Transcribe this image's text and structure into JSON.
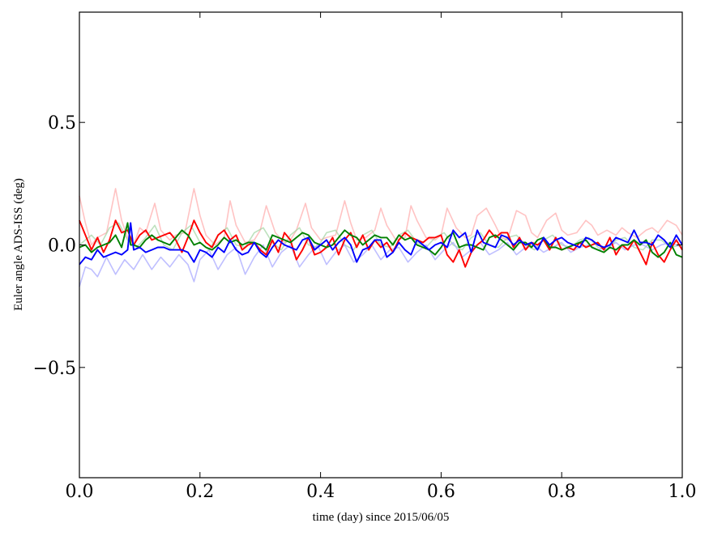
{
  "chart_data": {
    "type": "line",
    "title": "",
    "xlabel": "time (day) since 2015/06/05",
    "ylabel": "Euler angle ADS-ISS (deg)",
    "xlim": [
      0.0,
      1.0
    ],
    "ylim": [
      -0.95,
      0.95
    ],
    "xticks": [
      0.0,
      0.2,
      0.4,
      0.6,
      0.8,
      1.0
    ],
    "xtick_labels": [
      "0.0",
      "0.2",
      "0.4",
      "0.6",
      "0.8",
      "1.0"
    ],
    "yticks": [
      -0.5,
      0.0,
      0.5
    ],
    "ytick_labels": [
      "−0.5",
      "0.0",
      "0.5"
    ],
    "grid": false,
    "legend": "none",
    "series": [
      {
        "color": "#ff9b9b",
        "opacity": 0.6,
        "x": [
          0.0,
          0.01,
          0.02,
          0.03,
          0.045,
          0.06,
          0.07,
          0.08,
          0.09,
          0.1,
          0.11,
          0.125,
          0.135,
          0.15,
          0.16,
          0.175,
          0.19,
          0.2,
          0.21,
          0.225,
          0.24,
          0.25,
          0.26,
          0.275,
          0.29,
          0.3,
          0.31,
          0.325,
          0.34,
          0.35,
          0.36,
          0.375,
          0.385,
          0.4,
          0.41,
          0.425,
          0.44,
          0.45,
          0.46,
          0.475,
          0.49,
          0.5,
          0.51,
          0.525,
          0.54,
          0.55,
          0.56,
          0.575,
          0.59,
          0.6,
          0.61,
          0.625,
          0.64,
          0.65,
          0.66,
          0.675,
          0.69,
          0.7,
          0.71,
          0.725,
          0.74,
          0.75,
          0.76,
          0.775,
          0.79,
          0.8,
          0.81,
          0.825,
          0.84,
          0.85,
          0.86,
          0.875,
          0.89,
          0.9,
          0.91,
          0.925,
          0.94,
          0.95,
          0.96,
          0.975,
          0.99,
          1.0
        ],
        "y": [
          0.2,
          0.09,
          0.0,
          0.03,
          0.05,
          0.23,
          0.1,
          0.03,
          0.0,
          0.07,
          0.05,
          0.17,
          0.06,
          0.02,
          0.04,
          0.05,
          0.23,
          0.12,
          0.04,
          0.0,
          0.03,
          0.18,
          0.08,
          0.01,
          0.02,
          0.06,
          0.16,
          0.05,
          0.01,
          0.02,
          0.06,
          0.17,
          0.07,
          0.02,
          0.03,
          0.04,
          0.18,
          0.09,
          0.02,
          0.03,
          0.06,
          0.15,
          0.08,
          0.02,
          0.03,
          0.16,
          0.1,
          0.03,
          0.02,
          0.04,
          0.15,
          0.07,
          0.03,
          0.04,
          0.12,
          0.15,
          0.08,
          0.03,
          0.02,
          0.14,
          0.12,
          0.05,
          0.03,
          0.1,
          0.13,
          0.06,
          0.04,
          0.05,
          0.1,
          0.08,
          0.04,
          0.06,
          0.04,
          0.07,
          0.05,
          0.03,
          0.06,
          0.07,
          0.05,
          0.1,
          0.08,
          0.04
        ]
      },
      {
        "color": "#9ad19a",
        "opacity": 0.65,
        "x": [
          0.0,
          0.02,
          0.035,
          0.05,
          0.065,
          0.08,
          0.095,
          0.11,
          0.125,
          0.14,
          0.155,
          0.17,
          0.185,
          0.2,
          0.215,
          0.23,
          0.245,
          0.26,
          0.275,
          0.29,
          0.305,
          0.32,
          0.335,
          0.35,
          0.365,
          0.38,
          0.395,
          0.41,
          0.425,
          0.44,
          0.455,
          0.47,
          0.485,
          0.5,
          0.515,
          0.53,
          0.545,
          0.56,
          0.575,
          0.59,
          0.605,
          0.62,
          0.635,
          0.65,
          0.665,
          0.68,
          0.695,
          0.71,
          0.725,
          0.74,
          0.755,
          0.77,
          0.785,
          0.8,
          0.815,
          0.83,
          0.845,
          0.86,
          0.875,
          0.89,
          0.905,
          0.92,
          0.935,
          0.95,
          0.965,
          0.98,
          1.0
        ],
        "y": [
          0.0,
          0.04,
          0.0,
          0.07,
          0.09,
          0.02,
          -0.01,
          0.03,
          0.08,
          0.0,
          -0.02,
          0.05,
          0.08,
          0.01,
          -0.02,
          0.04,
          0.07,
          0.0,
          -0.01,
          0.05,
          0.07,
          0.01,
          -0.02,
          0.04,
          0.07,
          0.0,
          -0.01,
          0.05,
          0.06,
          0.0,
          -0.02,
          0.04,
          0.06,
          0.0,
          -0.01,
          0.04,
          0.06,
          0.01,
          -0.01,
          0.03,
          0.05,
          0.0,
          -0.02,
          0.03,
          0.05,
          0.0,
          -0.01,
          0.03,
          0.04,
          0.0,
          -0.02,
          0.02,
          0.04,
          0.0,
          -0.01,
          0.02,
          0.03,
          -0.01,
          -0.02,
          0.02,
          0.03,
          -0.01,
          -0.02,
          0.02,
          0.02,
          -0.01,
          0.0
        ]
      },
      {
        "color": "#a9a9ff",
        "opacity": 0.75,
        "x": [
          0.0,
          0.01,
          0.02,
          0.03,
          0.045,
          0.06,
          0.075,
          0.09,
          0.105,
          0.12,
          0.135,
          0.15,
          0.165,
          0.18,
          0.19,
          0.2,
          0.215,
          0.23,
          0.245,
          0.26,
          0.275,
          0.29,
          0.305,
          0.32,
          0.335,
          0.35,
          0.365,
          0.38,
          0.395,
          0.41,
          0.425,
          0.44,
          0.455,
          0.47,
          0.485,
          0.5,
          0.515,
          0.53,
          0.545,
          0.56,
          0.575,
          0.59,
          0.605,
          0.62,
          0.635,
          0.65,
          0.665,
          0.68,
          0.695,
          0.71,
          0.725,
          0.74,
          0.755,
          0.77,
          0.785,
          0.8,
          0.815,
          0.83,
          0.845,
          0.86,
          0.875,
          0.89,
          0.905,
          0.92,
          0.935,
          0.95,
          0.965,
          0.98,
          1.0
        ],
        "y": [
          -0.17,
          -0.09,
          -0.1,
          -0.13,
          -0.05,
          -0.12,
          -0.06,
          -0.1,
          -0.04,
          -0.1,
          -0.05,
          -0.09,
          -0.04,
          -0.08,
          -0.15,
          -0.06,
          -0.02,
          -0.1,
          -0.04,
          -0.01,
          -0.12,
          -0.05,
          0.0,
          -0.09,
          -0.03,
          0.0,
          -0.09,
          -0.04,
          0.0,
          -0.08,
          -0.03,
          0.0,
          -0.07,
          -0.04,
          0.0,
          -0.06,
          -0.02,
          -0.01,
          -0.07,
          -0.03,
          0.0,
          -0.06,
          -0.02,
          0.01,
          -0.05,
          -0.02,
          0.01,
          -0.04,
          -0.02,
          0.01,
          -0.04,
          -0.01,
          0.0,
          -0.03,
          -0.01,
          0.01,
          -0.03,
          -0.01,
          0.0,
          -0.02,
          -0.01,
          0.01,
          -0.02,
          0.0,
          0.0,
          -0.02,
          0.0,
          0.01,
          -0.01
        ]
      },
      {
        "color": "#ff0000",
        "opacity": 1,
        "x": [
          0.0,
          0.01,
          0.02,
          0.03,
          0.04,
          0.05,
          0.06,
          0.07,
          0.08,
          0.09,
          0.1,
          0.11,
          0.12,
          0.13,
          0.14,
          0.15,
          0.16,
          0.17,
          0.18,
          0.19,
          0.2,
          0.21,
          0.22,
          0.23,
          0.24,
          0.25,
          0.26,
          0.27,
          0.28,
          0.29,
          0.3,
          0.31,
          0.32,
          0.33,
          0.34,
          0.35,
          0.36,
          0.37,
          0.38,
          0.39,
          0.4,
          0.41,
          0.42,
          0.43,
          0.44,
          0.45,
          0.46,
          0.47,
          0.48,
          0.49,
          0.5,
          0.51,
          0.52,
          0.53,
          0.54,
          0.55,
          0.56,
          0.57,
          0.58,
          0.59,
          0.6,
          0.61,
          0.62,
          0.63,
          0.64,
          0.65,
          0.66,
          0.67,
          0.68,
          0.69,
          0.7,
          0.71,
          0.72,
          0.73,
          0.74,
          0.75,
          0.76,
          0.77,
          0.78,
          0.79,
          0.8,
          0.81,
          0.82,
          0.83,
          0.84,
          0.85,
          0.86,
          0.87,
          0.88,
          0.89,
          0.9,
          0.91,
          0.92,
          0.93,
          0.94,
          0.95,
          0.96,
          0.97,
          0.98,
          0.99,
          1.0
        ],
        "y": [
          0.1,
          0.04,
          -0.02,
          0.03,
          -0.03,
          0.02,
          0.1,
          0.05,
          0.06,
          0.0,
          0.04,
          0.06,
          0.02,
          0.03,
          0.04,
          0.05,
          0.02,
          -0.03,
          0.03,
          0.1,
          0.05,
          0.01,
          -0.01,
          0.04,
          0.06,
          0.02,
          0.04,
          -0.02,
          0.0,
          0.01,
          -0.02,
          -0.04,
          0.02,
          -0.03,
          0.05,
          0.02,
          -0.06,
          -0.02,
          0.03,
          -0.04,
          -0.03,
          -0.01,
          0.03,
          -0.04,
          0.02,
          0.05,
          -0.01,
          0.04,
          -0.02,
          0.02,
          -0.01,
          0.01,
          -0.03,
          0.02,
          0.05,
          0.03,
          0.02,
          0.01,
          0.03,
          0.03,
          0.04,
          -0.04,
          -0.07,
          -0.02,
          -0.09,
          -0.03,
          0.0,
          0.02,
          0.06,
          0.03,
          0.05,
          0.05,
          -0.01,
          0.03,
          -0.02,
          0.01,
          0.0,
          0.02,
          -0.02,
          0.03,
          -0.02,
          -0.01,
          -0.02,
          0.01,
          -0.01,
          0.0,
          0.01,
          -0.02,
          0.03,
          -0.04,
          0.0,
          -0.02,
          0.02,
          -0.03,
          -0.08,
          0.01,
          -0.04,
          -0.07,
          -0.02,
          0.02,
          -0.02
        ]
      },
      {
        "color": "#008000",
        "opacity": 1,
        "x": [
          0.0,
          0.01,
          0.02,
          0.03,
          0.04,
          0.05,
          0.06,
          0.07,
          0.08,
          0.085,
          0.09,
          0.1,
          0.11,
          0.12,
          0.13,
          0.14,
          0.15,
          0.16,
          0.17,
          0.18,
          0.19,
          0.2,
          0.21,
          0.22,
          0.23,
          0.24,
          0.25,
          0.26,
          0.27,
          0.28,
          0.29,
          0.3,
          0.31,
          0.32,
          0.33,
          0.34,
          0.35,
          0.36,
          0.37,
          0.38,
          0.39,
          0.4,
          0.41,
          0.42,
          0.43,
          0.44,
          0.45,
          0.46,
          0.47,
          0.48,
          0.49,
          0.5,
          0.51,
          0.52,
          0.53,
          0.54,
          0.55,
          0.56,
          0.57,
          0.58,
          0.59,
          0.6,
          0.61,
          0.62,
          0.63,
          0.64,
          0.65,
          0.66,
          0.67,
          0.68,
          0.69,
          0.7,
          0.71,
          0.72,
          0.73,
          0.74,
          0.75,
          0.76,
          0.77,
          0.78,
          0.79,
          0.8,
          0.81,
          0.82,
          0.83,
          0.84,
          0.85,
          0.86,
          0.87,
          0.88,
          0.89,
          0.9,
          0.91,
          0.92,
          0.93,
          0.94,
          0.95,
          0.96,
          0.97,
          0.98,
          0.99,
          1.0
        ],
        "y": [
          -0.01,
          0.0,
          -0.03,
          -0.01,
          0.0,
          0.01,
          0.04,
          -0.01,
          0.09,
          0.0,
          0.0,
          -0.01,
          0.02,
          0.04,
          0.02,
          0.01,
          0.0,
          0.03,
          0.06,
          0.04,
          0.0,
          0.01,
          -0.01,
          -0.02,
          0.0,
          0.03,
          0.01,
          0.02,
          0.0,
          0.01,
          0.01,
          0.0,
          -0.02,
          0.04,
          0.03,
          0.02,
          0.01,
          0.03,
          0.05,
          0.04,
          0.01,
          0.0,
          -0.01,
          0.0,
          0.03,
          0.06,
          0.04,
          0.03,
          0.0,
          0.02,
          0.04,
          0.03,
          0.03,
          0.0,
          0.04,
          0.02,
          0.03,
          0.0,
          -0.01,
          -0.02,
          -0.04,
          -0.01,
          0.03,
          0.05,
          -0.01,
          0.0,
          0.0,
          -0.01,
          -0.02,
          0.03,
          0.04,
          0.02,
          0.0,
          -0.02,
          0.01,
          0.01,
          -0.01,
          0.02,
          0.03,
          -0.01,
          -0.01,
          -0.02,
          -0.01,
          0.0,
          0.01,
          0.02,
          -0.01,
          -0.02,
          -0.03,
          -0.01,
          -0.02,
          0.0,
          0.0,
          0.02,
          0.0,
          0.02,
          -0.03,
          -0.05,
          -0.03,
          0.01,
          -0.04,
          -0.05
        ]
      },
      {
        "color": "#0000ff",
        "opacity": 1,
        "x": [
          0.0,
          0.01,
          0.02,
          0.03,
          0.04,
          0.05,
          0.06,
          0.07,
          0.08,
          0.085,
          0.09,
          0.1,
          0.11,
          0.12,
          0.13,
          0.14,
          0.15,
          0.16,
          0.17,
          0.18,
          0.19,
          0.2,
          0.21,
          0.22,
          0.23,
          0.24,
          0.25,
          0.26,
          0.27,
          0.28,
          0.29,
          0.3,
          0.31,
          0.32,
          0.33,
          0.34,
          0.35,
          0.36,
          0.37,
          0.38,
          0.39,
          0.4,
          0.41,
          0.42,
          0.43,
          0.44,
          0.45,
          0.46,
          0.47,
          0.48,
          0.49,
          0.5,
          0.51,
          0.52,
          0.53,
          0.54,
          0.55,
          0.56,
          0.57,
          0.58,
          0.59,
          0.6,
          0.61,
          0.62,
          0.63,
          0.64,
          0.65,
          0.66,
          0.67,
          0.68,
          0.69,
          0.7,
          0.71,
          0.72,
          0.73,
          0.74,
          0.75,
          0.76,
          0.77,
          0.78,
          0.79,
          0.8,
          0.81,
          0.82,
          0.83,
          0.84,
          0.85,
          0.86,
          0.87,
          0.88,
          0.89,
          0.9,
          0.91,
          0.92,
          0.93,
          0.94,
          0.95,
          0.96,
          0.97,
          0.98,
          0.99,
          1.0
        ],
        "y": [
          -0.08,
          -0.05,
          -0.06,
          -0.02,
          -0.05,
          -0.04,
          -0.03,
          -0.04,
          -0.02,
          0.09,
          -0.02,
          -0.01,
          -0.03,
          -0.02,
          -0.01,
          -0.01,
          -0.02,
          -0.02,
          -0.02,
          -0.03,
          -0.07,
          -0.02,
          -0.03,
          -0.05,
          -0.01,
          -0.03,
          0.02,
          -0.02,
          -0.04,
          -0.03,
          0.01,
          -0.03,
          -0.05,
          -0.01,
          0.02,
          0.0,
          -0.01,
          -0.02,
          0.02,
          0.03,
          -0.02,
          0.0,
          0.02,
          -0.02,
          0.01,
          0.03,
          0.0,
          -0.07,
          -0.02,
          -0.01,
          0.02,
          0.02,
          -0.05,
          -0.03,
          0.01,
          -0.02,
          -0.04,
          0.02,
          0.0,
          -0.02,
          0.0,
          0.01,
          -0.01,
          0.06,
          0.03,
          0.05,
          -0.03,
          0.06,
          0.01,
          0.0,
          -0.01,
          0.04,
          0.03,
          0.0,
          0.02,
          0.0,
          0.01,
          -0.02,
          0.03,
          0.0,
          0.02,
          0.03,
          0.01,
          0.0,
          -0.01,
          0.03,
          0.02,
          0.0,
          -0.01,
          0.0,
          0.03,
          0.02,
          0.01,
          0.06,
          0.01,
          0.01,
          0.0,
          0.04,
          0.02,
          -0.01,
          0.04,
          0.0
        ]
      }
    ]
  }
}
